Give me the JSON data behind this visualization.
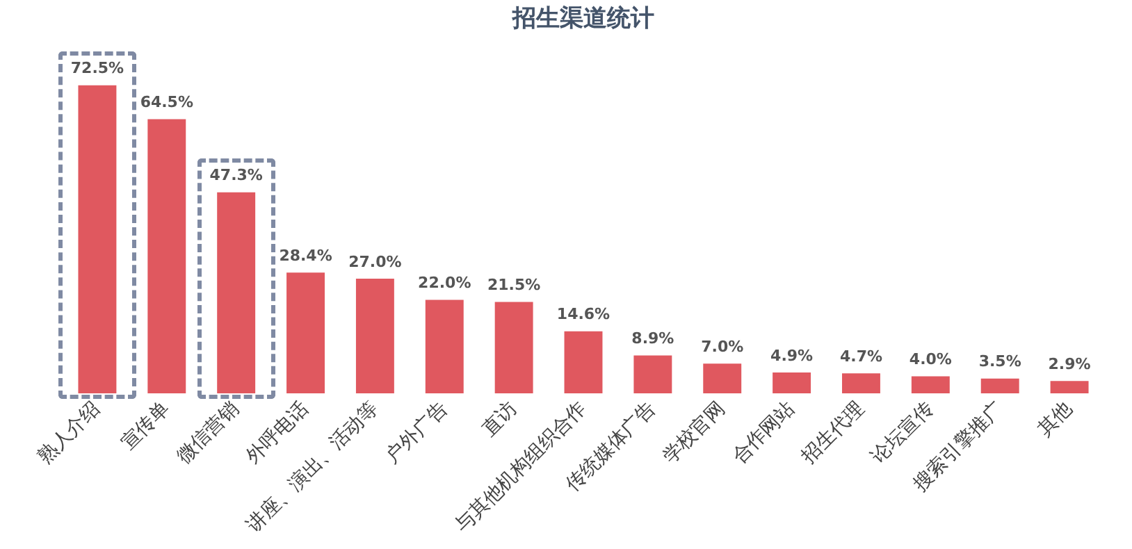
{
  "chart_data": {
    "type": "bar",
    "title": "招生渠道统计",
    "categories": [
      "熟人介绍",
      "宣传单",
      "微信营销",
      "外呼电话",
      "讲座、演出、活动等",
      "户外广告",
      "直访",
      "与其他机构组织合作",
      "传统媒体广告",
      "学校官网",
      "合作网站",
      "招生代理",
      "论坛宣传",
      "搜索引擎推广",
      "其他"
    ],
    "values": [
      72.5,
      64.5,
      47.3,
      28.4,
      27.0,
      22.0,
      21.5,
      14.6,
      8.9,
      7.0,
      4.9,
      4.7,
      4.0,
      3.5,
      2.9
    ],
    "value_labels": [
      "72.5%",
      "64.5%",
      "47.3%",
      "28.4%",
      "27.0%",
      "22.0%",
      "21.5%",
      "14.6%",
      "8.9%",
      "7.0%",
      "4.9%",
      "4.7%",
      "4.0%",
      "3.5%",
      "2.9%"
    ],
    "color": "#e0585f",
    "grid": false,
    "legend": false,
    "tick_labels": "x"
  }
}
